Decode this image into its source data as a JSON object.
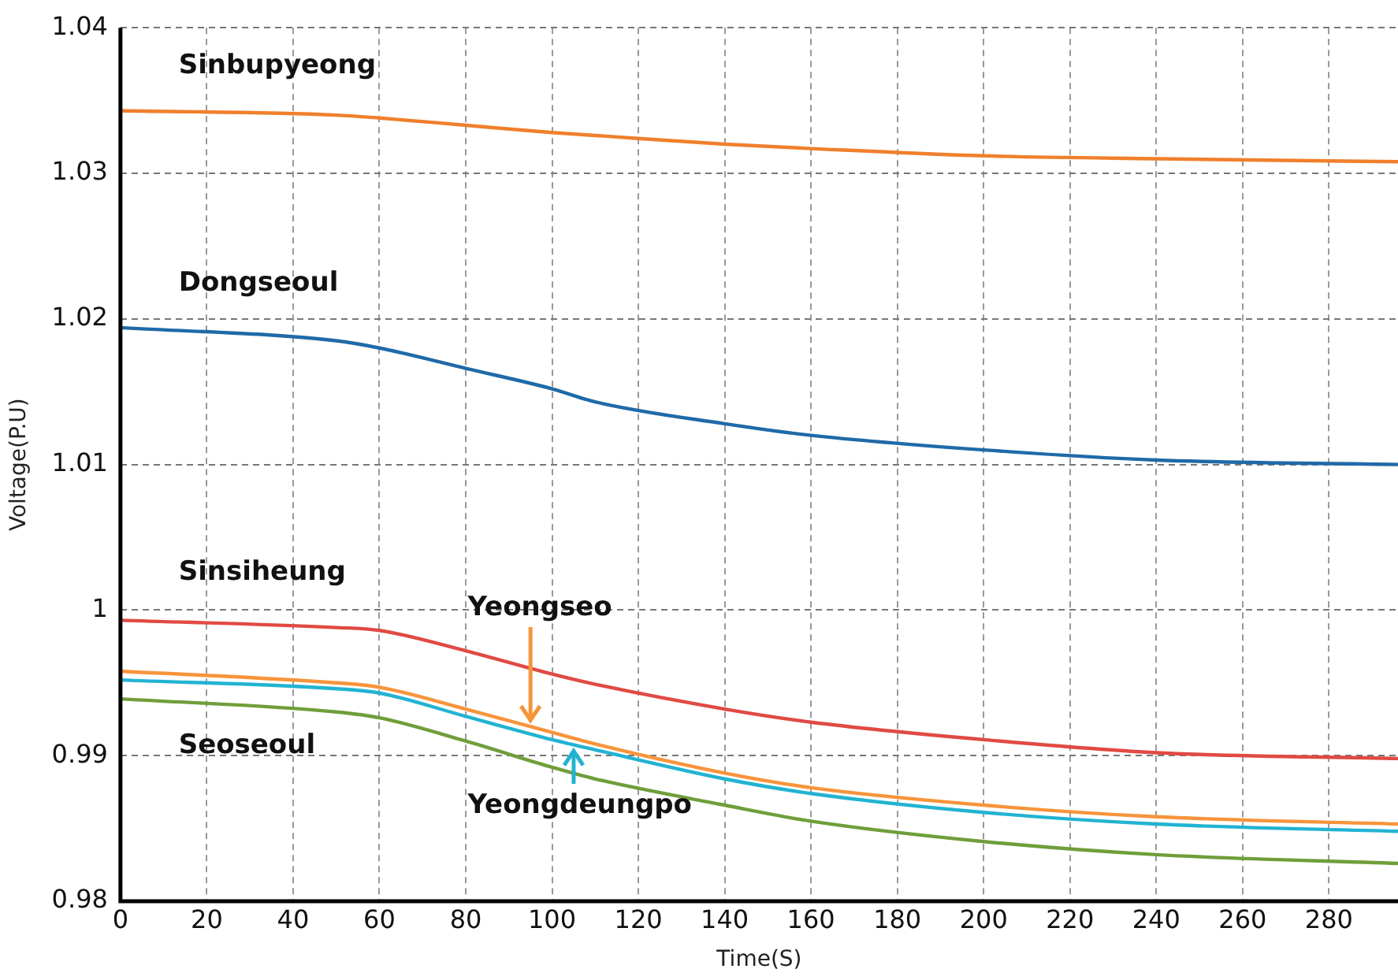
{
  "chart_data": {
    "type": "line",
    "xlabel": "Time(S)",
    "ylabel": "Voltage(P.U)",
    "xlim": [
      0,
      296
    ],
    "xticks": [
      0,
      20,
      40,
      60,
      80,
      100,
      120,
      140,
      160,
      180,
      200,
      220,
      240,
      260,
      280
    ],
    "ylim": [
      0.98,
      1.04
    ],
    "yticks": [
      0.98,
      0.99,
      1,
      1.01,
      1.02,
      1.03,
      1.04
    ],
    "grid": true,
    "marker": "none",
    "line_style": "solid",
    "x": [
      0,
      50,
      60,
      80,
      100,
      110,
      140,
      160,
      200,
      240,
      296
    ],
    "series": [
      {
        "name": "Sinbupyeong",
        "color": "#f07f2c",
        "values": [
          1.0343,
          1.034,
          1.0338,
          1.0333,
          1.0328,
          1.0326,
          1.032,
          1.0317,
          1.0312,
          1.031,
          1.0308
        ]
      },
      {
        "name": "Dongseoul",
        "color": "#1f6aa8",
        "values": [
          1.0194,
          1.0185,
          1.018,
          1.0166,
          1.0152,
          1.0143,
          1.0128,
          1.012,
          1.011,
          1.0103,
          1.01
        ]
      },
      {
        "name": "Sinsiheung",
        "color": "#e04a43",
        "values": [
          0.9993,
          0.9988,
          0.9986,
          0.9972,
          0.9956,
          0.9949,
          0.9932,
          0.9923,
          0.9911,
          0.9902,
          0.9898
        ]
      },
      {
        "name": "Yeongseo",
        "color": "#f7943a",
        "values": [
          0.9958,
          0.995,
          0.9947,
          0.9932,
          0.9916,
          0.9908,
          0.9888,
          0.9878,
          0.9866,
          0.9858,
          0.9853
        ]
      },
      {
        "name": "Yeongdeungpo",
        "color": "#22b3d2",
        "values": [
          0.9952,
          0.9946,
          0.9943,
          0.9927,
          0.9911,
          0.9904,
          0.9884,
          0.9874,
          0.9861,
          0.9853,
          0.9848
        ]
      },
      {
        "name": "Seoseoul",
        "color": "#6f9e3a",
        "values": [
          0.9939,
          0.993,
          0.9926,
          0.991,
          0.9892,
          0.9884,
          0.9866,
          0.9855,
          0.9841,
          0.9832,
          0.9826
        ]
      }
    ]
  }
}
